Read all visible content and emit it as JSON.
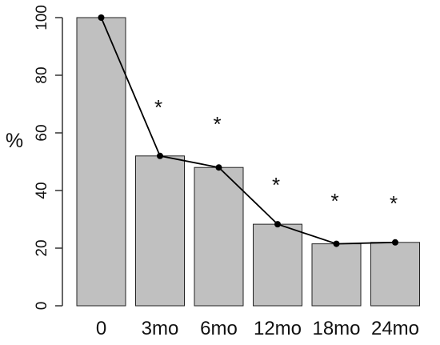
{
  "chart_data": {
    "type": "bar",
    "categories": [
      "0",
      "3mo",
      "6mo",
      "12mo",
      "18mo",
      "24mo"
    ],
    "values": [
      100,
      52,
      48,
      28.3,
      21.5,
      22
    ],
    "line": {
      "values": [
        100,
        52,
        48,
        28.3,
        21.5,
        22
      ],
      "color": "#000000"
    },
    "ylabel": "%",
    "ylim": [
      0,
      100
    ],
    "yticks": [
      0,
      20,
      40,
      60,
      80,
      100
    ],
    "significance_markers": [
      "",
      "*",
      "*",
      "*",
      "*",
      "*"
    ],
    "bar_color": "#c0c0c0",
    "bar_edge_color": "#222222",
    "grid": false,
    "legend": "none"
  }
}
